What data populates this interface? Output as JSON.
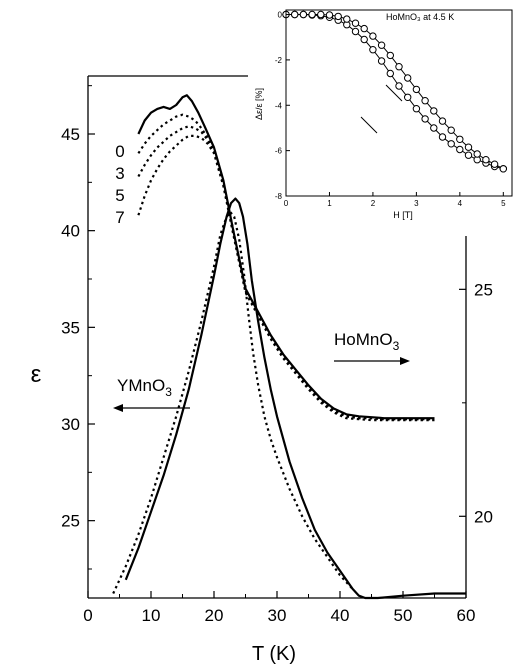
{
  "chart_data": [
    {
      "type": "line",
      "xlabel": "T (K)",
      "ylabel": "ε",
      "xlim": [
        0,
        60
      ],
      "ylim": [
        21,
        48
      ],
      "y2lim": [
        18.2,
        29.7
      ],
      "xticks": [
        0,
        10,
        20,
        30,
        40,
        50,
        60
      ],
      "yticks": [
        25,
        30,
        35,
        40,
        45
      ],
      "y2ticks": [
        20,
        25
      ],
      "annotations": {
        "homno3": {
          "base": "HoMnO",
          "sub": "3",
          "arrow": "right"
        },
        "ymno3": {
          "base": "YMnO",
          "sub": "3",
          "arrow": "left"
        }
      },
      "field_labels": [
        "0",
        "3",
        "5",
        "7"
      ],
      "series": [
        {
          "axis": "left",
          "style": "solid",
          "x": [
            8,
            9,
            10,
            11,
            12,
            13,
            14,
            15,
            15.7,
            16.5,
            17.5,
            18.5,
            20,
            21.5,
            23,
            25,
            27,
            29,
            31,
            33,
            35,
            37,
            39,
            41,
            43,
            45,
            47,
            49,
            51,
            53,
            55
          ],
          "y": [
            45.0,
            45.7,
            46.1,
            46.3,
            46.4,
            46.3,
            46.5,
            46.9,
            47.0,
            46.7,
            46.1,
            45.4,
            44.3,
            42.6,
            40.1,
            37.0,
            35.8,
            34.6,
            33.6,
            32.8,
            32.0,
            31.3,
            30.8,
            30.5,
            30.4,
            30.35,
            30.3,
            30.3,
            30.3,
            30.3,
            30.3
          ]
        },
        {
          "axis": "left",
          "style": "dotted",
          "x": [
            8,
            9,
            10,
            11,
            12,
            13,
            14,
            15,
            16,
            17,
            18,
            19,
            20,
            21.5,
            23,
            25,
            27,
            29,
            31,
            33,
            35,
            37,
            39,
            41,
            43,
            45,
            47,
            49,
            51,
            53,
            55
          ],
          "y": [
            44.0,
            44.5,
            44.9,
            45.2,
            45.5,
            45.7,
            45.9,
            46.0,
            45.9,
            45.7,
            45.3,
            44.8,
            44.2,
            42.5,
            40.1,
            36.9,
            35.7,
            34.5,
            33.5,
            32.7,
            31.9,
            31.2,
            30.7,
            30.4,
            30.3,
            30.3,
            30.25,
            30.25,
            30.25,
            30.25,
            30.25
          ]
        },
        {
          "axis": "left",
          "style": "dotted",
          "x": [
            8,
            9,
            10,
            11,
            12,
            13,
            14,
            15,
            16,
            17,
            18,
            19,
            20,
            21.5,
            23,
            25,
            27,
            29,
            31,
            33,
            35,
            37,
            39,
            41,
            43,
            45,
            47,
            49,
            51,
            53,
            55
          ],
          "y": [
            42.8,
            43.4,
            43.9,
            44.3,
            44.6,
            44.9,
            45.1,
            45.3,
            45.4,
            45.3,
            45.1,
            44.7,
            44.1,
            42.4,
            40.0,
            36.9,
            35.7,
            34.5,
            33.5,
            32.7,
            31.9,
            31.2,
            30.7,
            30.4,
            30.3,
            30.3,
            30.25,
            30.25,
            30.25,
            30.25,
            30.25
          ]
        },
        {
          "axis": "left",
          "style": "dotted",
          "x": [
            8,
            9,
            10,
            11,
            12,
            13,
            14,
            15,
            16,
            17,
            18,
            19,
            20,
            21.5,
            23,
            25,
            27,
            29,
            31,
            33,
            35,
            37,
            39,
            41,
            43,
            45,
            47,
            49,
            51,
            53,
            55
          ],
          "y": [
            40.8,
            41.8,
            42.6,
            43.2,
            43.7,
            44.1,
            44.4,
            44.7,
            44.9,
            44.9,
            44.8,
            44.5,
            44.0,
            42.3,
            39.9,
            36.8,
            35.6,
            34.4,
            33.4,
            32.6,
            31.8,
            31.1,
            30.6,
            30.3,
            30.25,
            30.2,
            30.2,
            30.2,
            30.2,
            30.2,
            30.2
          ]
        },
        {
          "axis": "right",
          "style": "solid",
          "x": [
            6,
            8,
            10,
            12,
            14,
            16,
            18,
            20,
            21,
            22,
            22.7,
            23.4,
            24,
            24.6,
            25.3,
            26,
            27,
            28,
            29,
            30,
            32,
            34,
            36,
            38,
            40,
            42,
            43,
            44,
            46,
            50,
            55,
            60
          ],
          "y": [
            18.6,
            19.3,
            20.1,
            20.9,
            21.8,
            22.8,
            24.0,
            25.3,
            26.0,
            26.6,
            26.9,
            27.0,
            26.9,
            26.6,
            26.0,
            25.2,
            24.3,
            23.5,
            22.8,
            22.2,
            21.2,
            20.4,
            19.7,
            19.2,
            18.8,
            18.4,
            18.25,
            18.2,
            18.2,
            18.25,
            18.3,
            18.3
          ]
        },
        {
          "axis": "right",
          "style": "dotted",
          "x": [
            4,
            6,
            8,
            10,
            12,
            14,
            16,
            18,
            20,
            21,
            22,
            22.6,
            23.2,
            24,
            24.8,
            25.5,
            26.2,
            27,
            28,
            29,
            30,
            32,
            34,
            36,
            38,
            40,
            42
          ],
          "y": [
            18.3,
            18.9,
            19.6,
            20.4,
            21.3,
            22.2,
            23.2,
            24.3,
            25.5,
            26.2,
            26.6,
            26.7,
            26.6,
            26.1,
            25.3,
            24.4,
            23.6,
            22.9,
            22.2,
            21.7,
            21.3,
            20.6,
            20.0,
            19.5,
            19.1,
            18.7,
            18.4
          ]
        }
      ]
    },
    {
      "type": "scatter",
      "title": "HoMnO₃ at 4.5 K",
      "xlabel": "H [T]",
      "ylabel": "Δε/ε [%]",
      "xlim": [
        0,
        5.2
      ],
      "ylim": [
        -8,
        0.2
      ],
      "xticks": [
        0,
        1,
        2,
        3,
        4,
        5
      ],
      "yticks": [
        -8,
        -6,
        -4,
        -2,
        0
      ],
      "series": [
        {
          "marker": "circle",
          "x": [
            0,
            0.2,
            0.4,
            0.6,
            0.8,
            1.0,
            1.2,
            1.4,
            1.6,
            1.8,
            2.0,
            2.2,
            2.4,
            2.6,
            2.8,
            3.0,
            3.2,
            3.4,
            3.6,
            3.8,
            4.0,
            4.2,
            4.4,
            4.6,
            4.8,
            5.0
          ],
          "y": [
            0,
            0,
            0,
            -0.02,
            -0.05,
            -0.12,
            -0.25,
            -0.45,
            -0.75,
            -1.1,
            -1.55,
            -2.05,
            -2.6,
            -3.15,
            -3.65,
            -4.15,
            -4.6,
            -5.0,
            -5.4,
            -5.7,
            -5.95,
            -6.2,
            -6.4,
            -6.55,
            -6.7,
            -6.8
          ]
        },
        {
          "marker": "circle",
          "x": [
            0,
            0.2,
            0.4,
            0.6,
            0.8,
            1.0,
            1.2,
            1.4,
            1.6,
            1.8,
            2.0,
            2.2,
            2.4,
            2.6,
            2.8,
            3.0,
            3.2,
            3.4,
            3.6,
            3.8,
            4.0,
            4.2,
            4.4,
            4.6,
            4.8,
            5.0
          ],
          "y": [
            0,
            0,
            0,
            0,
            0,
            -0.02,
            -0.08,
            -0.2,
            -0.38,
            -0.62,
            -0.95,
            -1.35,
            -1.8,
            -2.3,
            -2.8,
            -3.3,
            -3.8,
            -4.25,
            -4.7,
            -5.1,
            -5.5,
            -5.85,
            -6.15,
            -6.4,
            -6.6,
            -6.8
          ]
        }
      ]
    }
  ]
}
